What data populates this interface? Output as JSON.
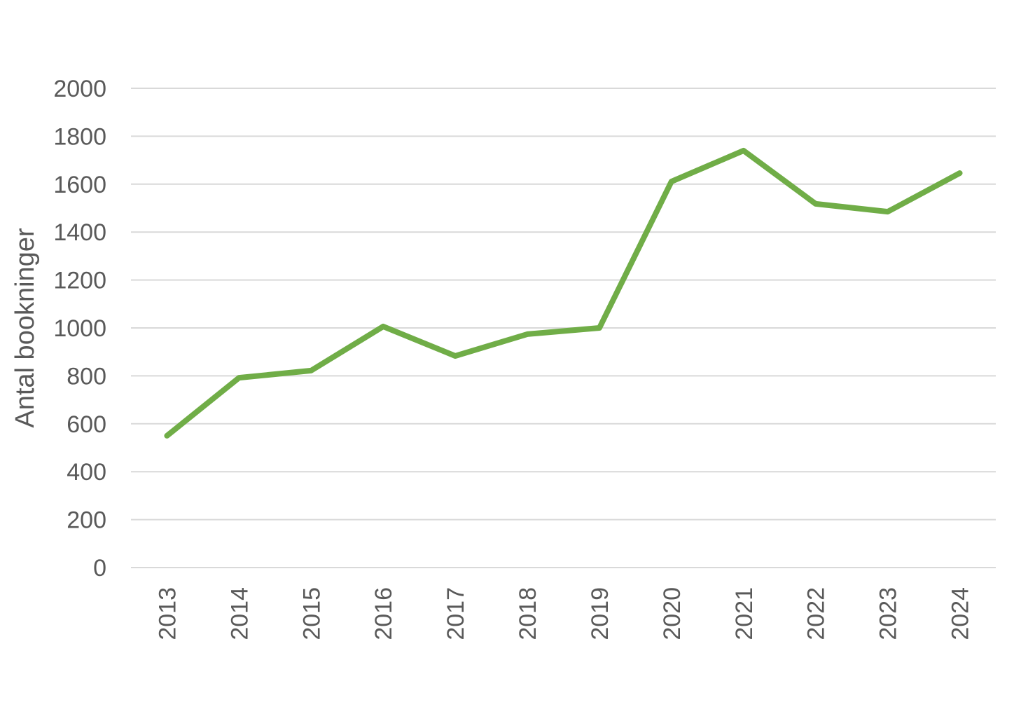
{
  "chart_data": {
    "type": "line",
    "title": "",
    "xlabel": "",
    "ylabel": "Antal bookninger",
    "categories": [
      "2013",
      "2014",
      "2015",
      "2016",
      "2017",
      "2018",
      "2019",
      "2020",
      "2021",
      "2022",
      "2023",
      "2024"
    ],
    "series": [
      {
        "values": [
          550,
          792,
          822,
          1006,
          883,
          974,
          1000,
          1611,
          1740,
          1518,
          1485,
          1646
        ],
        "color": "#70AD47"
      }
    ],
    "ylim": [
      0,
      2000
    ],
    "yticks": [
      0,
      200,
      400,
      600,
      800,
      1000,
      1200,
      1400,
      1600,
      1800,
      2000
    ],
    "grid": true,
    "legend": "none",
    "colors": {
      "line": "#70AD47",
      "grid": "#D9D9D9",
      "text": "#595959"
    }
  }
}
